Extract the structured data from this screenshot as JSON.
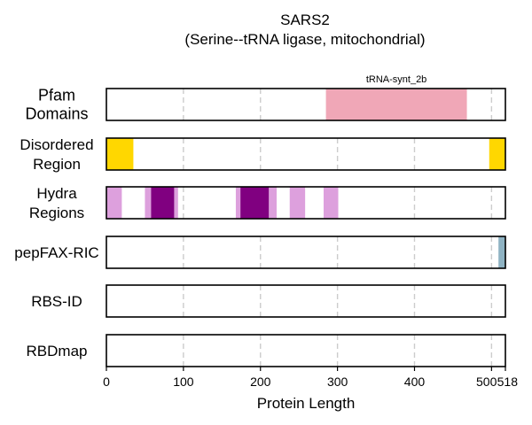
{
  "chart_data": {
    "type": "domain-track",
    "title": "SARS2",
    "subtitle": "(Serine--tRNA ligase, mitochondrial)",
    "xlabel": "Protein Length",
    "xlim": [
      0,
      518
    ],
    "x_ticks": [
      0,
      100,
      200,
      300,
      400,
      500,
      518
    ],
    "gridlines": [
      100,
      200,
      300,
      400,
      500
    ],
    "colors": {
      "pfam": "#f0a7b7",
      "disordered": "#ffd700",
      "hydra_light": "#dda0dd",
      "hydra_dark": "#800080",
      "pepfax": "#8fb3c3",
      "grid": "#cccccc"
    },
    "tracks": [
      {
        "id": "pfam",
        "label_lines": [
          "Pfam",
          "Domains"
        ],
        "large": true,
        "segments": [
          {
            "start": 285,
            "end": 468,
            "color": "pfam",
            "label": "tRNA-synt_2b"
          }
        ]
      },
      {
        "id": "disordered",
        "label_lines": [
          "Disordered",
          "Region"
        ],
        "segments": [
          {
            "start": 0,
            "end": 35,
            "color": "disordered"
          },
          {
            "start": 497,
            "end": 518,
            "color": "disordered"
          }
        ]
      },
      {
        "id": "hydra",
        "label_lines": [
          "Hydra",
          "Regions"
        ],
        "segments": [
          {
            "start": 0,
            "end": 20,
            "color": "hydra_light"
          },
          {
            "start": 50,
            "end": 58,
            "color": "hydra_light"
          },
          {
            "start": 58,
            "end": 88,
            "color": "hydra_dark"
          },
          {
            "start": 88,
            "end": 93,
            "color": "hydra_light"
          },
          {
            "start": 168,
            "end": 174,
            "color": "hydra_light"
          },
          {
            "start": 174,
            "end": 211,
            "color": "hydra_dark"
          },
          {
            "start": 211,
            "end": 221,
            "color": "hydra_light"
          },
          {
            "start": 238,
            "end": 258,
            "color": "hydra_light"
          },
          {
            "start": 282,
            "end": 301,
            "color": "hydra_light"
          }
        ]
      },
      {
        "id": "pepfax",
        "label_lines": [
          "pepFAX-RIC"
        ],
        "segments": [
          {
            "start": 509,
            "end": 518,
            "color": "pepfax"
          }
        ]
      },
      {
        "id": "rbsid",
        "label_lines": [
          "RBS-ID"
        ],
        "segments": []
      },
      {
        "id": "rbdmap",
        "label_lines": [
          "RBDmap"
        ],
        "segments": []
      }
    ]
  }
}
